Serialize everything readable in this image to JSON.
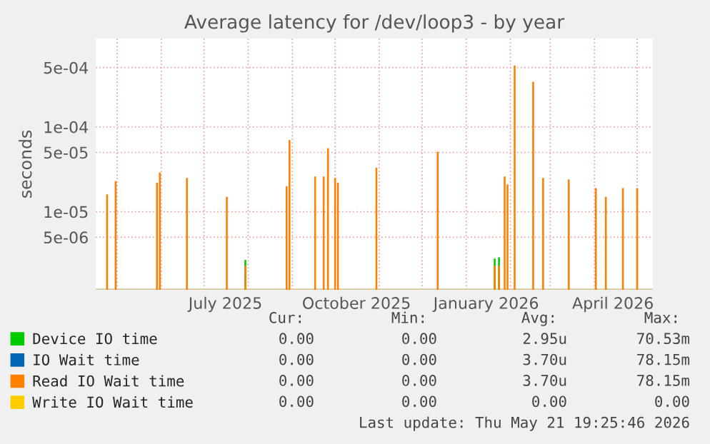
{
  "chart_data": {
    "type": "bar",
    "title": "Average latency for /dev/loop3 - by year",
    "ylabel": "seconds",
    "x": [
      "2025-04-24",
      "2025-04-30",
      "2025-05-29",
      "2025-05-31",
      "2025-06-19",
      "2025-07-17",
      "2025-07-30",
      "2025-08-28",
      "2025-08-30",
      "2025-09-17",
      "2025-09-23",
      "2025-09-26",
      "2025-10-01",
      "2025-10-03",
      "2025-10-30",
      "2025-12-12",
      "2026-01-21",
      "2026-01-24",
      "2026-01-28",
      "2026-01-30",
      "2026-02-04",
      "2026-02-17",
      "2026-02-24",
      "2026-03-14",
      "2026-04-02",
      "2026-04-09",
      "2026-04-21",
      "2026-05-01"
    ],
    "series": [
      {
        "name": "Device IO time",
        "color": "#00cc00",
        "values": [
          null,
          null,
          null,
          null,
          null,
          null,
          2.7e-06,
          null,
          null,
          null,
          null,
          null,
          null,
          null,
          null,
          null,
          2.8e-06,
          2.9e-06,
          null,
          null,
          null,
          null,
          null,
          null,
          null,
          null,
          null,
          null
        ]
      },
      {
        "name": "IO Wait time",
        "color": "#0066b3",
        "values": [
          null,
          null,
          null,
          null,
          null,
          null,
          null,
          null,
          null,
          null,
          null,
          null,
          null,
          null,
          null,
          null,
          null,
          null,
          null,
          null,
          null,
          null,
          null,
          null,
          null,
          null,
          null,
          null
        ]
      },
      {
        "name": "Read IO Wait time",
        "color": "#ff8000",
        "values": [
          1.6e-05,
          2.3e-05,
          2.2e-05,
          2.9e-05,
          2.5e-05,
          1.5e-05,
          2.3e-06,
          2e-05,
          7e-05,
          2.6e-05,
          2.6e-05,
          5.6e-05,
          2.5e-05,
          2.2e-05,
          3.3e-05,
          5.1e-05,
          2.3e-06,
          2.3e-06,
          2.6e-05,
          2.1e-05,
          0.00053,
          0.00034,
          2.5e-05,
          2.4e-05,
          1.9e-05,
          1.5e-05,
          1.9e-05,
          1.9e-05
        ]
      },
      {
        "name": "Write IO Wait time",
        "color": "#ffcc00",
        "values": [
          null,
          null,
          null,
          null,
          null,
          null,
          null,
          null,
          null,
          null,
          null,
          null,
          null,
          null,
          null,
          null,
          null,
          null,
          null,
          null,
          null,
          null,
          null,
          null,
          null,
          null,
          null,
          null
        ]
      }
    ],
    "log": "y",
    "ylim": [
      1.2e-06,
      0.0011
    ],
    "yticks": [
      {
        "value": 5e-06,
        "label": "5e-06"
      },
      {
        "value": 1e-05,
        "label": "1e-05"
      },
      {
        "value": 5e-05,
        "label": "5e-05"
      },
      {
        "value": 0.0001,
        "label": "1e-04"
      },
      {
        "value": 0.0005,
        "label": "5e-04"
      }
    ],
    "xlim": [
      "2025-04-16",
      "2026-05-12"
    ],
    "xticks": [
      {
        "value": "2025-07-16",
        "label": "July 2025"
      },
      {
        "value": "2025-10-16",
        "label": "October 2025"
      },
      {
        "value": "2026-01-15",
        "label": "January 2026"
      },
      {
        "value": "2026-04-14",
        "label": "April 2026"
      }
    ],
    "grid": true,
    "legend": "bottom",
    "annotations": [
      "Cur:",
      "Min:",
      "Avg:",
      "Max:",
      "0.00",
      "0.00",
      "2.95u",
      "70.53m",
      "0.00",
      "0.00",
      "3.70u",
      "78.15m",
      "0.00",
      "0.00",
      "3.70u",
      "78.15m",
      "0.00",
      "0.00",
      "0.00",
      "0.00",
      "Last update: Thu May 21 19:25:46 2026"
    ]
  }
}
